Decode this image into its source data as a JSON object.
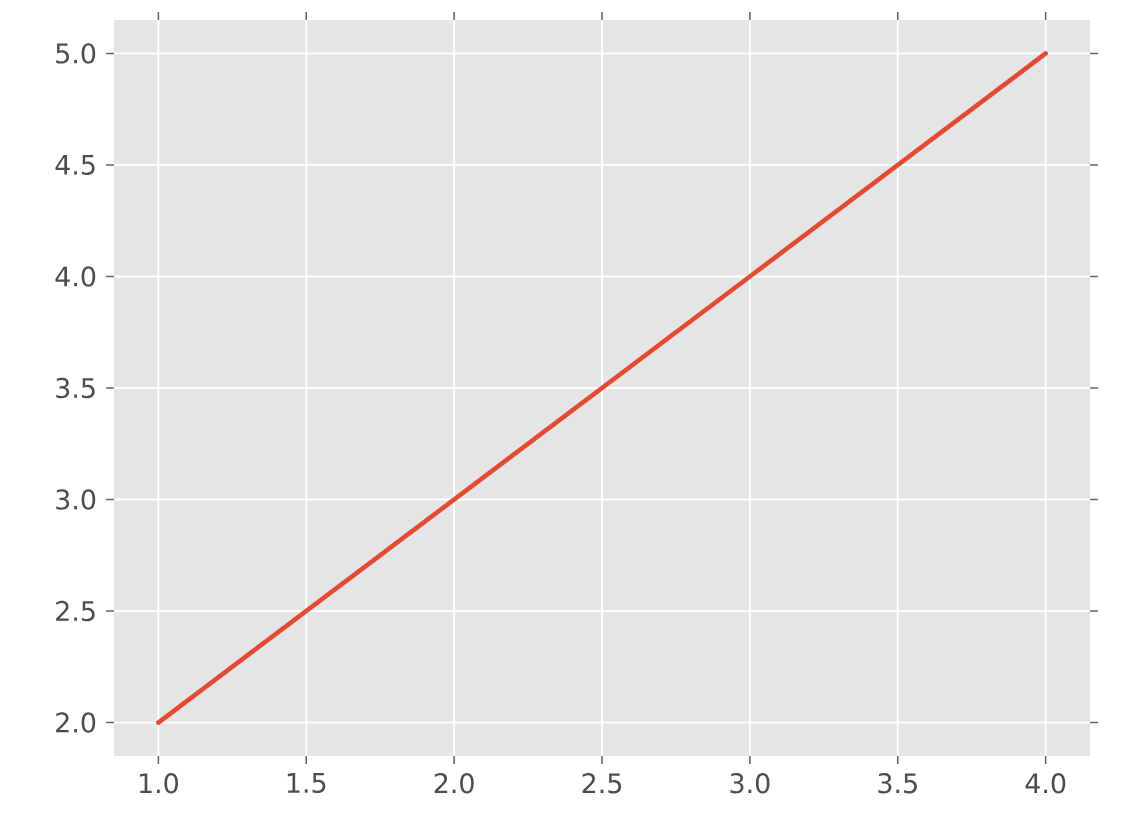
{
  "chart_data": {
    "type": "line",
    "x": [
      1,
      2,
      3,
      4
    ],
    "series": [
      {
        "color": "#e24a33",
        "values": [
          2,
          3,
          4,
          5
        ]
      }
    ],
    "xlim": [
      0.85,
      4.15
    ],
    "ylim": [
      1.85,
      5.15
    ],
    "xticks": [
      {
        "value": 1,
        "label": "1.0"
      },
      {
        "value": 1.5,
        "label": "1.5"
      },
      {
        "value": 2,
        "label": "2.0"
      },
      {
        "value": 2.5,
        "label": "2.5"
      },
      {
        "value": 3,
        "label": "3.0"
      },
      {
        "value": 3.5,
        "label": "3.5"
      },
      {
        "value": 4,
        "label": "4.0"
      }
    ],
    "yticks": [
      {
        "value": 2,
        "label": "2.0"
      },
      {
        "value": 2.5,
        "label": "2.5"
      },
      {
        "value": 3,
        "label": "3.0"
      },
      {
        "value": 3.5,
        "label": "3.5"
      },
      {
        "value": 4,
        "label": "4.0"
      },
      {
        "value": 4.5,
        "label": "4.5"
      },
      {
        "value": 5,
        "label": "5.0"
      }
    ],
    "grid": true,
    "line_style": "solid",
    "marker": "none"
  }
}
